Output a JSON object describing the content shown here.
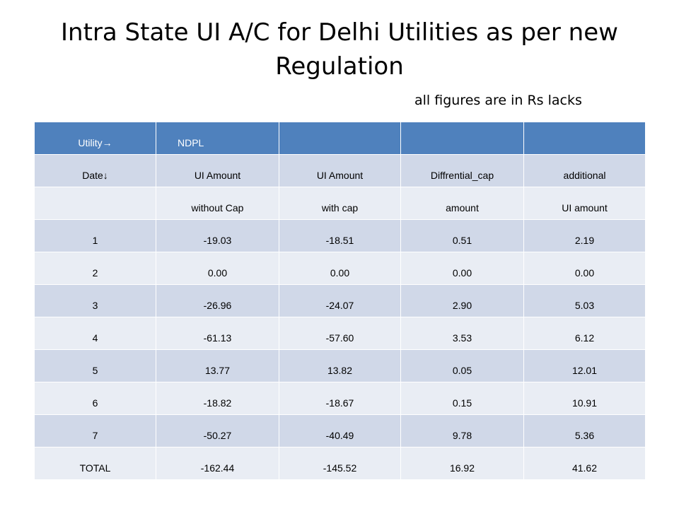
{
  "title": "Intra State UI A/C for Delhi Utilities as per new Regulation",
  "subtitle": "all figures are in Rs lacks",
  "table": {
    "header": [
      "Utility→",
      "NDPL",
      "",
      "",
      ""
    ],
    "subheader1": [
      "Date↓",
      "UI Amount",
      "UI Amount",
      "Diffrential_cap",
      "additional"
    ],
    "subheader2": [
      "",
      "without Cap",
      "with cap",
      "amount",
      "UI amount"
    ],
    "rows": [
      [
        "1",
        "-19.03",
        "-18.51",
        "0.51",
        "2.19"
      ],
      [
        "2",
        "0.00",
        "0.00",
        "0.00",
        "0.00"
      ],
      [
        "3",
        "-26.96",
        "-24.07",
        "2.90",
        "5.03"
      ],
      [
        "4",
        "-61.13",
        "-57.60",
        "3.53",
        "6.12"
      ],
      [
        "5",
        "13.77",
        "13.82",
        "0.05",
        "12.01"
      ],
      [
        "6",
        "-18.82",
        "-18.67",
        "0.15",
        "10.91"
      ],
      [
        "7",
        "-50.27",
        "-40.49",
        "9.78",
        "5.36"
      ],
      [
        "TOTAL",
        "-162.44",
        "-145.52",
        "16.92",
        "41.62"
      ]
    ]
  }
}
